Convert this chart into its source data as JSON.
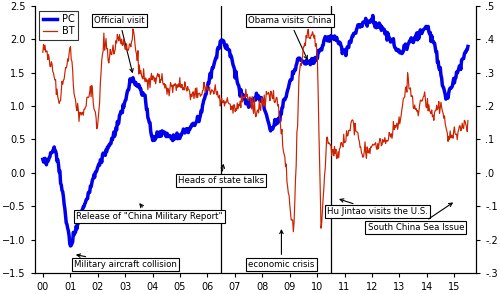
{
  "left_ylim": [
    -1.5,
    2.5
  ],
  "right_ylim": [
    -0.3,
    0.5
  ],
  "left_yticks": [
    -1.5,
    -1.0,
    -0.5,
    0.0,
    0.5,
    1.0,
    1.5,
    2.0,
    2.5
  ],
  "right_yticks": [
    -0.3,
    -0.2,
    -0.1,
    0.0,
    0.1,
    0.2,
    0.3,
    0.4,
    0.5
  ],
  "right_yticklabels": [
    "-.3",
    "-.2",
    "-.1",
    ".0",
    ".1",
    ".2",
    ".3",
    ".4",
    ".5"
  ],
  "xtick_labels": [
    "00",
    "01",
    "02",
    "03",
    "04",
    "05",
    "06",
    "07",
    "08",
    "09",
    "10",
    "11",
    "12",
    "13",
    "14",
    "15"
  ],
  "pc_color": "#0000EE",
  "bt_color": "#CC2200",
  "pc_linewidth": 2.5,
  "bt_linewidth": 0.85
}
